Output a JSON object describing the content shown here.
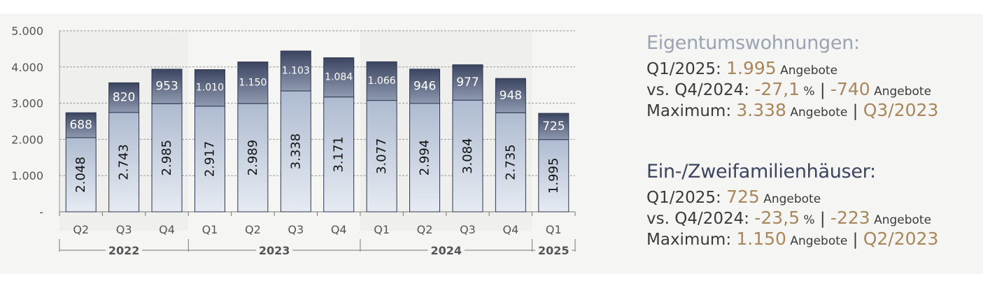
{
  "chart_data": {
    "type": "bar",
    "stacked": true,
    "ylim": [
      0,
      5000
    ],
    "yticks": [
      "5.000",
      "4.000",
      "3.000",
      "2.000",
      "1.000",
      "-"
    ],
    "ytick_values": [
      5000,
      4000,
      3000,
      2000,
      1000,
      0
    ],
    "grid": true,
    "categories": [
      "Q2",
      "Q3",
      "Q4",
      "Q1",
      "Q2",
      "Q3",
      "Q4",
      "Q1",
      "Q2",
      "Q3",
      "Q4",
      "Q1"
    ],
    "years": [
      {
        "label": "2022",
        "count": 3
      },
      {
        "label": "2023",
        "count": 4
      },
      {
        "label": "2024",
        "count": 4
      },
      {
        "label": "2025",
        "count": 1
      }
    ],
    "series": [
      {
        "values": [
          2048,
          2743,
          2985,
          2917,
          2989,
          3338,
          3171,
          3077,
          2994,
          3084,
          2735,
          1995
        ],
        "labels": [
          "2.048",
          "2.743",
          "2.985",
          "2.917",
          "2.989",
          "3.338",
          "3.171",
          "3.077",
          "2.994",
          "3.084",
          "2.735",
          "1.995"
        ],
        "color": "#c9d4e2"
      },
      {
        "values": [
          688,
          820,
          953,
          1010,
          1150,
          1103,
          1084,
          1066,
          946,
          977,
          948,
          725
        ],
        "labels": [
          "688",
          "820",
          "953",
          "1.010",
          "1.150",
          "1.103",
          "1.084",
          "1.066",
          "946",
          "977",
          "948",
          "725"
        ],
        "color": "#4a5570"
      }
    ]
  },
  "info": {
    "eigentum": {
      "heading": "Eigentumswohnungen:",
      "l1_prefix": "Q1/2025: ",
      "l1_value": "1.995",
      "l1_unit": " Angebote",
      "l2_prefix": "vs. Q4/2024: ",
      "l2_pct": "-27,1",
      "l2_pct_unit": " %",
      "l2_sep": " | ",
      "l2_abs": "-740",
      "l2_unit": " Angebote",
      "l3_prefix": "Maximum: ",
      "l3_value": "3.338",
      "l3_unit": " Angebote",
      "l3_sep": " | ",
      "l3_period": "Q3/2023"
    },
    "ezfh": {
      "heading": "Ein-/Zweifamilienhäuser:",
      "l1_prefix": "Q1/2025: ",
      "l1_value": "725",
      "l1_unit": " Angebote",
      "l2_prefix": "vs. Q4/2024: ",
      "l2_pct": "-23,5",
      "l2_pct_unit": " %",
      "l2_sep": " | ",
      "l2_abs": "-223",
      "l2_unit": " Angebote",
      "l3_prefix": "Maximum: ",
      "l3_value": "1.150",
      "l3_unit": " Angebote",
      "l3_sep": " | ",
      "l3_period": "Q2/2023"
    }
  }
}
